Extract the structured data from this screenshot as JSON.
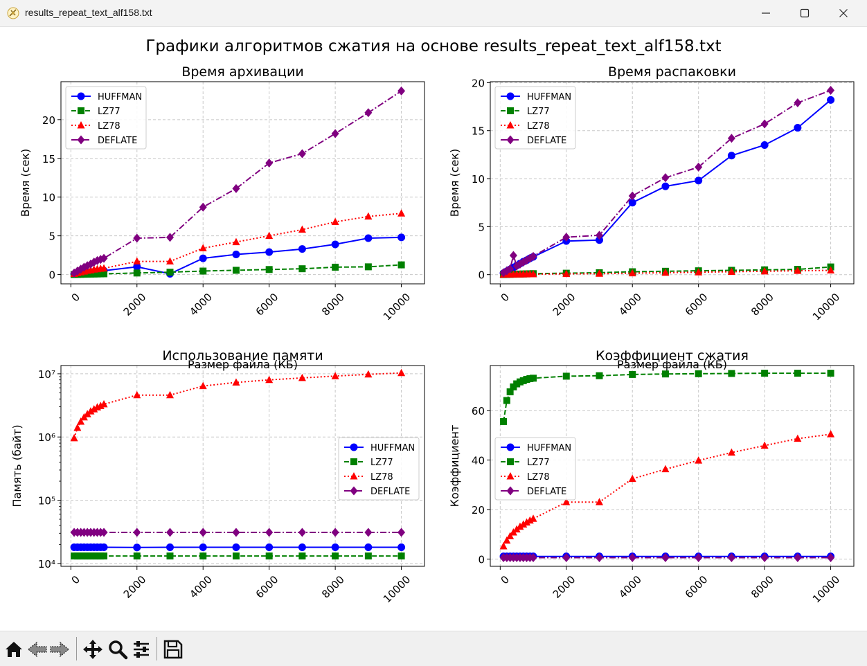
{
  "window": {
    "title": "results_repeat_text_alf158.txt"
  },
  "figure": {
    "suptitle": "Графики алгоритмов сжатия на основе results_repeat_text_alf158.txt"
  },
  "toolbar": {
    "buttons": [
      "home-icon",
      "back-icon",
      "forward-icon",
      "pan-icon",
      "zoom-icon",
      "configure-subplots-icon",
      "save-icon"
    ]
  },
  "colors": {
    "HUFFMAN": "#0000ff",
    "LZ77": "#008000",
    "LZ78": "#ff0000",
    "DEFLATE": "#800080"
  },
  "chart_data": [
    {
      "type": "line",
      "title": "Время архивации",
      "xlabel": "Размер файла (КБ)",
      "ylabel": "Время (сек)",
      "xlim": [
        -300,
        10700
      ],
      "ylim": [
        -1.2,
        24.9
      ],
      "yscale": "linear",
      "xticks": [
        0,
        2000,
        4000,
        6000,
        8000,
        10000
      ],
      "yticks": [
        0,
        5,
        10,
        15,
        20
      ],
      "ytick_labels": [
        "0",
        "5",
        "10",
        "15",
        "20"
      ],
      "grid": true,
      "legend": "upper left",
      "x": [
        100,
        200,
        300,
        400,
        500,
        600,
        700,
        800,
        900,
        1000,
        2000,
        3000,
        4000,
        5000,
        6000,
        7000,
        8000,
        9000,
        10000
      ],
      "series": [
        {
          "name": "HUFFMAN",
          "style": "solid",
          "marker": "circle",
          "values": [
            0.05,
            0.1,
            0.15,
            0.2,
            0.25,
            0.3,
            0.35,
            0.4,
            0.45,
            0.5,
            1.0,
            0.1,
            2.1,
            2.6,
            2.9,
            3.3,
            3.9,
            4.7,
            4.8
          ]
        },
        {
          "name": "LZ77",
          "style": "dashed",
          "marker": "square",
          "values": [
            0.01,
            0.02,
            0.03,
            0.04,
            0.05,
            0.06,
            0.07,
            0.08,
            0.09,
            0.1,
            0.2,
            0.3,
            0.45,
            0.55,
            0.65,
            0.75,
            0.95,
            1.0,
            1.25
          ]
        },
        {
          "name": "LZ78",
          "style": "dotted",
          "marker": "triangle",
          "values": [
            0.1,
            0.2,
            0.3,
            0.4,
            0.5,
            0.55,
            0.65,
            0.7,
            0.75,
            0.8,
            1.7,
            1.7,
            3.4,
            4.2,
            5.0,
            5.8,
            6.8,
            7.5,
            7.9
          ]
        },
        {
          "name": "DEFLATE",
          "style": "dashdot",
          "marker": "diamond",
          "values": [
            0.2,
            0.45,
            0.7,
            0.95,
            1.15,
            1.35,
            1.6,
            1.8,
            1.95,
            2.1,
            4.7,
            4.8,
            8.7,
            11.1,
            14.4,
            15.6,
            18.2,
            20.9,
            23.7
          ]
        }
      ]
    },
    {
      "type": "line",
      "title": "Время распаковки",
      "xlabel": "Размер файла (КБ)",
      "ylabel": "Время (сек)",
      "xlim": [
        -300,
        10700
      ],
      "ylim": [
        -0.96,
        20.1
      ],
      "yscale": "linear",
      "xticks": [
        0,
        2000,
        4000,
        6000,
        8000,
        10000
      ],
      "yticks": [
        0,
        5,
        10,
        15,
        20
      ],
      "ytick_labels": [
        "0",
        "5",
        "10",
        "15",
        "20"
      ],
      "grid": true,
      "legend": "upper left",
      "x": [
        100,
        200,
        300,
        400,
        500,
        600,
        700,
        800,
        900,
        1000,
        2000,
        3000,
        4000,
        5000,
        6000,
        7000,
        8000,
        9000,
        10000
      ],
      "series": [
        {
          "name": "HUFFMAN",
          "style": "solid",
          "marker": "circle",
          "values": [
            0.15,
            0.35,
            0.55,
            0.75,
            0.95,
            1.15,
            1.35,
            1.5,
            1.7,
            1.85,
            3.5,
            3.6,
            7.5,
            9.2,
            9.8,
            12.4,
            13.5,
            15.3,
            18.2
          ]
        },
        {
          "name": "LZ77",
          "style": "dashed",
          "marker": "square",
          "values": [
            0.01,
            0.02,
            0.03,
            0.04,
            0.05,
            0.06,
            0.07,
            0.08,
            0.09,
            0.1,
            0.15,
            0.2,
            0.3,
            0.35,
            0.4,
            0.45,
            0.5,
            0.55,
            0.8
          ]
        },
        {
          "name": "LZ78",
          "style": "dotted",
          "marker": "triangle",
          "values": [
            0.01,
            0.01,
            0.02,
            0.02,
            0.03,
            0.03,
            0.04,
            0.04,
            0.05,
            0.05,
            0.08,
            0.1,
            0.15,
            0.2,
            0.25,
            0.3,
            0.35,
            0.4,
            0.45
          ]
        },
        {
          "name": "DEFLATE",
          "style": "dashdot",
          "marker": "diamond",
          "values": [
            0.2,
            0.4,
            0.6,
            2.0,
            0.9,
            1.1,
            1.3,
            1.5,
            1.7,
            1.9,
            3.9,
            4.1,
            8.2,
            10.1,
            11.2,
            14.2,
            15.7,
            17.9,
            19.2
          ]
        }
      ]
    },
    {
      "type": "line",
      "title": "Использование памяти",
      "xlabel": "Размер файла (КБ)",
      "ylabel": "Память (байт)",
      "xlim": [
        -300,
        10700
      ],
      "ylim": [
        9000,
        13500000
      ],
      "yscale": "log",
      "xticks": [
        0,
        2000,
        4000,
        6000,
        8000,
        10000
      ],
      "yticks": [
        10000,
        100000,
        1000000,
        10000000
      ],
      "ytick_labels": [
        "10^4",
        "10^5",
        "10^6",
        "10^7"
      ],
      "grid": true,
      "legend": "center right",
      "x": [
        100,
        200,
        300,
        400,
        500,
        600,
        700,
        800,
        900,
        1000,
        2000,
        3000,
        4000,
        5000,
        6000,
        7000,
        8000,
        9000,
        10000
      ],
      "series": [
        {
          "name": "HUFFMAN",
          "style": "solid",
          "marker": "circle",
          "values": [
            18000,
            18000,
            18000,
            18000,
            18000,
            18000,
            18000,
            18000,
            18000,
            18000,
            17900,
            18000,
            18000,
            18000,
            18000,
            18000,
            18000,
            18000,
            18000
          ]
        },
        {
          "name": "LZ77",
          "style": "dashed",
          "marker": "square",
          "values": [
            13100,
            13100,
            13100,
            13100,
            13100,
            13100,
            13100,
            13100,
            13100,
            13100,
            13100,
            13100,
            13100,
            13100,
            13100,
            13100,
            13100,
            13100,
            13100
          ]
        },
        {
          "name": "LZ78",
          "style": "dotted",
          "marker": "triangle",
          "values": [
            960000,
            1400000,
            1750000,
            2050000,
            2300000,
            2550000,
            2750000,
            2950000,
            3100000,
            3300000,
            4600000,
            4600000,
            6400000,
            7300000,
            8000000,
            8600000,
            9200000,
            9800000,
            10300000
          ]
        },
        {
          "name": "DEFLATE",
          "style": "dashdot",
          "marker": "diamond",
          "values": [
            31000,
            31000,
            31000,
            31000,
            31000,
            31000,
            31000,
            31000,
            31000,
            31000,
            31000,
            31000,
            31000,
            31000,
            31000,
            31000,
            31000,
            31000,
            31000
          ]
        }
      ]
    },
    {
      "type": "line",
      "title": "Коэффициент сжатия",
      "xlabel": "Размер файла (КБ)",
      "ylabel": "Коэффициент",
      "xlim": [
        -300,
        10700
      ],
      "ylim": [
        -2.9,
        78.1
      ],
      "yscale": "linear",
      "xticks": [
        0,
        2000,
        4000,
        6000,
        8000,
        10000
      ],
      "yticks": [
        0,
        20,
        40,
        60
      ],
      "ytick_labels": [
        "0",
        "20",
        "40",
        "60"
      ],
      "grid": true,
      "legend": "center left",
      "x": [
        100,
        200,
        300,
        400,
        500,
        600,
        700,
        800,
        900,
        1000,
        2000,
        3000,
        4000,
        5000,
        6000,
        7000,
        8000,
        9000,
        10000
      ],
      "series": [
        {
          "name": "HUFFMAN",
          "style": "solid",
          "marker": "circle",
          "values": [
            1.1,
            1.1,
            1.1,
            1.1,
            1.1,
            1.1,
            1.1,
            1.1,
            1.1,
            1.1,
            1.1,
            1.1,
            1.1,
            1.1,
            1.1,
            1.1,
            1.1,
            1.1,
            1.1
          ]
        },
        {
          "name": "LZ77",
          "style": "dashed",
          "marker": "square",
          "values": [
            55.5,
            64.0,
            67.5,
            69.5,
            70.7,
            71.5,
            72.0,
            72.5,
            72.8,
            73.0,
            73.8,
            74.0,
            74.5,
            74.7,
            74.8,
            74.9,
            75.0,
            75.0,
            75.0
          ]
        },
        {
          "name": "LZ78",
          "style": "dotted",
          "marker": "triangle",
          "values": [
            5.2,
            7.5,
            9.3,
            10.8,
            12.0,
            13.1,
            14.0,
            14.8,
            15.6,
            16.3,
            23.0,
            23.0,
            32.4,
            36.3,
            39.8,
            43.0,
            45.8,
            48.6,
            50.4
          ]
        },
        {
          "name": "DEFLATE",
          "style": "dashdot",
          "marker": "diamond",
          "values": [
            0.6,
            0.6,
            0.6,
            0.6,
            0.6,
            0.6,
            0.6,
            0.6,
            0.6,
            0.6,
            0.6,
            0.6,
            0.6,
            0.6,
            0.6,
            0.6,
            0.6,
            0.6,
            0.6
          ]
        }
      ]
    }
  ]
}
